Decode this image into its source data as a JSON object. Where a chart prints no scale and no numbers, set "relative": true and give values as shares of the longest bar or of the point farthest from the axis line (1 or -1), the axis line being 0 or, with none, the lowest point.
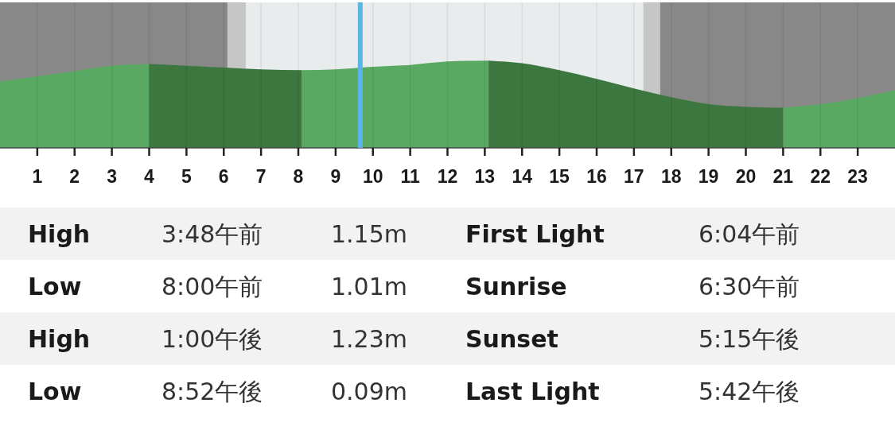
{
  "chart_data": {
    "type": "area",
    "relative": true,
    "xlim": [
      0,
      24
    ],
    "xticks": [
      1,
      2,
      3,
      4,
      5,
      6,
      7,
      8,
      9,
      10,
      11,
      12,
      13,
      14,
      15,
      16,
      17,
      18,
      19,
      20,
      21,
      22,
      23
    ],
    "grid": "x",
    "series": [
      {
        "color": "#59a962",
        "x": [
          0,
          1,
          2,
          3,
          4
        ],
        "values": [
          0.76,
          0.82,
          0.88,
          0.94,
          0.96
        ]
      },
      {
        "color": "#3b773f",
        "x": [
          4,
          5,
          6,
          7,
          8.1
        ],
        "values": [
          0.96,
          0.94,
          0.92,
          0.9,
          0.89
        ]
      },
      {
        "color": "#59a962",
        "x": [
          8.1,
          9,
          10,
          11,
          12,
          13.1
        ],
        "values": [
          0.89,
          0.9,
          0.93,
          0.95,
          0.99,
          1.0
        ]
      },
      {
        "color": "#3b773f",
        "x": [
          13.1,
          14,
          15,
          16,
          17,
          18,
          19,
          20,
          21
        ],
        "values": [
          1.0,
          0.97,
          0.89,
          0.79,
          0.68,
          0.58,
          0.5,
          0.47,
          0.46
        ]
      },
      {
        "color": "#59a962",
        "x": [
          21,
          22,
          23,
          24
        ],
        "values": [
          0.46,
          0.5,
          0.57,
          0.66
        ]
      }
    ],
    "bands": [
      {
        "axis": "x",
        "from": 0,
        "to": 6.1,
        "color": "#888888"
      },
      {
        "axis": "x",
        "from": 6.1,
        "to": 6.6,
        "color": "#c6c6c6"
      },
      {
        "axis": "x",
        "from": 6.6,
        "to": 17.25,
        "color": "#e9eced"
      },
      {
        "axis": "x",
        "from": 17.25,
        "to": 17.7,
        "color": "#c6c6c6"
      },
      {
        "axis": "x",
        "from": 17.7,
        "to": 24,
        "color": "#888888"
      }
    ],
    "ref_lines": [
      {
        "axis": "x",
        "value": 9.66,
        "color": "#5ab4e5"
      }
    ],
    "annotations": [
      "High",
      "3:48午前",
      "1.15m",
      "First Light",
      "6:04午前",
      "Low",
      "8:00午前",
      "1.01m",
      "Sunrise",
      "6:30午前",
      "High",
      "1:00午後",
      "1.23m",
      "Sunset",
      "5:15午後",
      "Low",
      "8:52午後",
      "0.09m",
      "Last Light",
      "5:42午後"
    ]
  }
}
